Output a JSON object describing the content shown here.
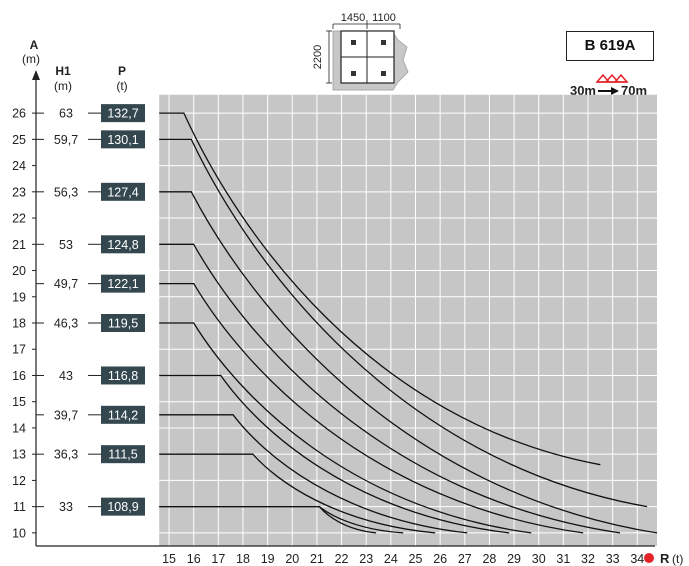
{
  "chart_data": {
    "type": "line",
    "model": "B 619A",
    "y_axis": {
      "symbol": "A",
      "unit": "(m)",
      "ticks": [
        10,
        11,
        12,
        13,
        14,
        15,
        16,
        17,
        18,
        19,
        20,
        21,
        22,
        23,
        24,
        25,
        26
      ],
      "range": [
        9.5,
        26.5
      ]
    },
    "x_axis": {
      "symbol": "R",
      "unit": "(t)",
      "ticks": [
        15,
        16,
        17,
        18,
        19,
        20,
        21,
        22,
        23,
        24,
        25,
        26,
        27,
        28,
        29,
        30,
        31,
        32,
        33,
        34
      ],
      "range": [
        9.6,
        34.8
      ]
    },
    "col_headers": {
      "h1": "H1",
      "h1_unit": "(m)",
      "p": "P",
      "p_unit": "(t)"
    },
    "footprint": {
      "width_label": "1450",
      "width_label_2": "1100",
      "height_label": "2200"
    },
    "legend_speed": {
      "from": "30m",
      "to": "70m"
    },
    "series": [
      {
        "a": 26,
        "h1": "63",
        "p": "132,7",
        "x_flat_end": 15.6,
        "x_end": 32.5,
        "y_end": 12.6
      },
      {
        "a": 25,
        "h1": "59,7",
        "p": "130,1",
        "x_flat_end": 15.9,
        "x_end": 34.4,
        "y_end": 11.0
      },
      {
        "a": 23,
        "h1": "56,3",
        "p": "127,4",
        "x_flat_end": 15.9,
        "x_end": 34.8,
        "y_end": 10.0
      },
      {
        "a": 21,
        "h1": "53",
        "p": "124,8",
        "x_flat_end": 16.0,
        "x_end": 33.3,
        "y_end": 10.0
      },
      {
        "a": 19.5,
        "h1": "49,7",
        "p": "122,1",
        "x_flat_end": 16.0,
        "x_end": 31.8,
        "y_end": 10.0
      },
      {
        "a": 18,
        "h1": "46,3",
        "p": "119,5",
        "x_flat_end": 16.0,
        "x_end": 29.7,
        "y_end": 10.0
      },
      {
        "a": 16,
        "h1": "43",
        "p": "116,8",
        "x_flat_end": 17.1,
        "x_end": 28.8,
        "y_end": 10.0
      },
      {
        "a": 14.5,
        "h1": "39,7",
        "p": "114,2",
        "x_flat_end": 17.6,
        "x_end": 27.1,
        "y_end": 10.0
      },
      {
        "a": 13,
        "h1": "36,3",
        "p": "111,5",
        "x_flat_end": 18.4,
        "x_end": 25.8,
        "y_end": 10.0
      },
      {
        "a": 11,
        "h1": "33",
        "p": "108,9",
        "x_flat_end": 21.1,
        "x_end": 24.5,
        "y_end": 10.0
      },
      {
        "a": 11,
        "h1": "",
        "p": "",
        "x_flat_end": 21.1,
        "x_end": 23.4,
        "y_end": 10.0
      }
    ],
    "grid": true,
    "colors": {
      "grid_bg": "#c6c6c6",
      "grid_line": "#ffffff",
      "p_box": "#34474f",
      "accent": "#e32229"
    }
  }
}
